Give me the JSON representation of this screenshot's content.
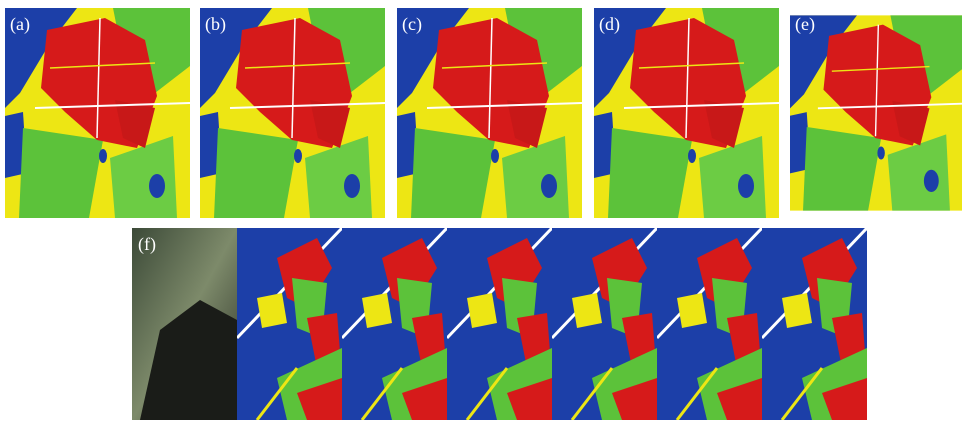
{
  "panels": [
    {
      "label": "(a)"
    },
    {
      "label": "(b)"
    },
    {
      "label": "(c)"
    },
    {
      "label": "(d)"
    },
    {
      "label": "(e)"
    }
  ],
  "bottom_panel": {
    "label": "(f)"
  }
}
